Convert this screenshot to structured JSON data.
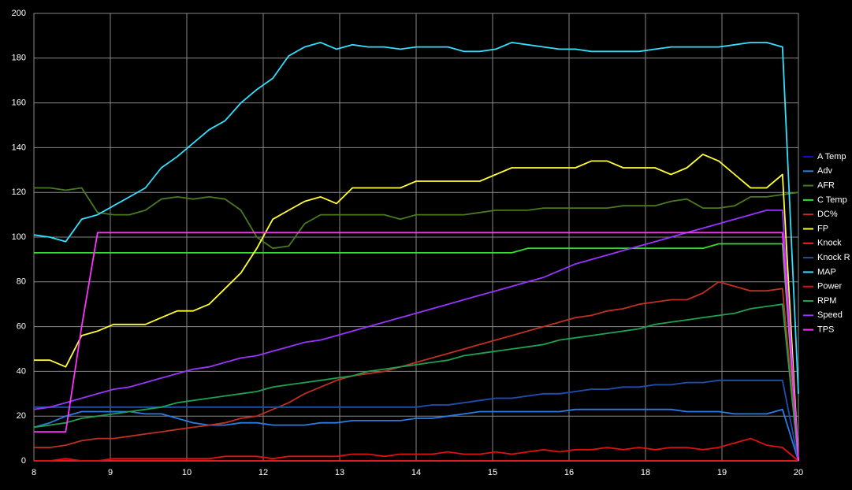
{
  "chart_data": {
    "type": "line",
    "x": [
      8,
      8.25,
      8.5,
      8.75,
      9,
      9.25,
      9.5,
      9.75,
      10,
      10.25,
      10.5,
      10.75,
      11,
      11.25,
      11.5,
      11.75,
      12,
      12.25,
      12.5,
      12.75,
      13,
      13.25,
      13.5,
      13.75,
      14,
      14.25,
      14.5,
      14.75,
      15,
      15.25,
      15.5,
      15.75,
      16,
      16.25,
      16.5,
      16.75,
      17,
      17.25,
      17.5,
      17.75,
      18,
      18.25,
      18.5,
      18.75,
      19,
      19.25,
      19.5,
      19.75,
      20
    ],
    "xlim": [
      8,
      20
    ],
    "xticks": [
      8,
      {
        "value": 9.2,
        "label": "9"
      },
      {
        "value": 10.4,
        "label": "10"
      },
      {
        "value": 11.6,
        "label": "12"
      },
      {
        "value": 12.8,
        "label": "13"
      },
      14,
      {
        "value": 15.2,
        "label": "15"
      },
      {
        "value": 16.4,
        "label": "16"
      },
      {
        "value": 17.6,
        "label": "18"
      },
      {
        "value": 18.8,
        "label": "19"
      },
      20
    ],
    "ylim": [
      0,
      200
    ],
    "yticks": [
      0,
      20,
      40,
      60,
      80,
      100,
      120,
      140,
      160,
      180,
      200
    ],
    "grid": true,
    "legend": "right",
    "series": [
      {
        "name": "A Temp",
        "color": "#1010c0",
        "values": [
          24,
          24,
          24,
          24,
          24,
          24,
          24,
          24,
          24,
          24,
          24,
          24,
          24,
          24,
          24,
          24,
          24,
          24,
          24,
          24,
          24,
          24,
          24,
          24,
          24,
          25,
          25,
          26,
          27,
          28,
          28,
          29,
          30,
          30,
          31,
          32,
          32,
          33,
          33,
          34,
          34,
          35,
          35,
          36,
          36,
          36,
          36,
          36,
          0
        ]
      },
      {
        "name": "Adv",
        "color": "#2a7be4",
        "values": [
          15,
          17,
          20,
          22,
          22,
          22,
          22,
          21,
          21,
          19,
          17,
          16,
          16,
          17,
          17,
          16,
          16,
          16,
          17,
          17,
          18,
          18,
          18,
          18,
          19,
          19,
          20,
          21,
          22,
          22,
          22,
          22,
          22,
          22,
          23,
          23,
          23,
          23,
          23,
          23,
          23,
          22,
          22,
          22,
          21,
          21,
          21,
          23,
          0
        ]
      },
      {
        "name": "AFR",
        "color": "#4a7a20",
        "values": [
          122,
          122,
          121,
          122,
          111,
          110,
          110,
          112,
          117,
          118,
          117,
          118,
          117,
          112,
          100,
          95,
          96,
          106,
          110,
          110,
          110,
          110,
          110,
          108,
          110,
          110,
          110,
          110,
          111,
          112,
          112,
          112,
          113,
          113,
          113,
          113,
          113,
          114,
          114,
          114,
          116,
          117,
          113,
          113,
          114,
          118,
          118,
          119,
          120
        ]
      },
      {
        "name": "C Temp",
        "color": "#33dd33",
        "values": [
          93,
          93,
          93,
          93,
          93,
          93,
          93,
          93,
          93,
          93,
          93,
          93,
          93,
          93,
          93,
          93,
          93,
          93,
          93,
          93,
          93,
          93,
          93,
          93,
          93,
          93,
          93,
          93,
          93,
          93,
          93,
          95,
          95,
          95,
          95,
          95,
          95,
          95,
          95,
          95,
          95,
          95,
          95,
          97,
          97,
          97,
          97,
          97,
          0
        ]
      },
      {
        "name": "DC%",
        "color": "#c03020",
        "values": [
          6,
          6,
          7,
          9,
          10,
          10,
          11,
          12,
          13,
          14,
          15,
          16,
          17,
          19,
          20,
          23,
          26,
          30,
          33,
          36,
          38,
          39,
          40,
          42,
          44,
          46,
          48,
          50,
          52,
          54,
          56,
          58,
          60,
          62,
          64,
          65,
          67,
          68,
          70,
          71,
          72,
          72,
          75,
          80,
          78,
          76,
          76,
          77,
          0
        ]
      },
      {
        "name": "FP",
        "color": "#ffff33",
        "values": [
          45,
          45,
          42,
          56,
          58,
          61,
          61,
          61,
          64,
          67,
          67,
          70,
          77,
          84,
          95,
          108,
          112,
          116,
          118,
          115,
          122,
          122,
          122,
          122,
          125,
          125,
          125,
          125,
          125,
          128,
          131,
          131,
          131,
          131,
          131,
          134,
          134,
          131,
          131,
          131,
          128,
          131,
          137,
          134,
          128,
          122,
          122,
          128,
          0
        ]
      },
      {
        "name": "Knock",
        "color": "#ff2020",
        "values": [
          0,
          0,
          0,
          0,
          0,
          0,
          0,
          0,
          0,
          0,
          0,
          0,
          0,
          0,
          0,
          0,
          0,
          0,
          0,
          0,
          0,
          0,
          0,
          0,
          0,
          0,
          0,
          0,
          0,
          0,
          0,
          0,
          0,
          0,
          0,
          0,
          0,
          0,
          0,
          0,
          0,
          0,
          0,
          0,
          0,
          0,
          0,
          0,
          0
        ]
      },
      {
        "name": "Knock R",
        "color": "#1f4fa0",
        "values": [
          24,
          24,
          24,
          24,
          24,
          24,
          24,
          24,
          24,
          24,
          24,
          24,
          24,
          24,
          24,
          24,
          24,
          24,
          24,
          24,
          24,
          24,
          24,
          24,
          24,
          25,
          25,
          26,
          27,
          28,
          28,
          29,
          30,
          30,
          31,
          32,
          32,
          33,
          33,
          34,
          34,
          35,
          35,
          36,
          36,
          36,
          36,
          36,
          0
        ]
      },
      {
        "name": "MAP",
        "color": "#33e0ff",
        "values": [
          101,
          100,
          98,
          108,
          110,
          114,
          118,
          122,
          131,
          136,
          142,
          148,
          152,
          160,
          166,
          171,
          181,
          185,
          187,
          184,
          186,
          185,
          185,
          184,
          185,
          185,
          185,
          183,
          183,
          184,
          187,
          186,
          185,
          184,
          184,
          183,
          183,
          183,
          183,
          184,
          185,
          185,
          185,
          185,
          186,
          187,
          187,
          185,
          30
        ]
      },
      {
        "name": "Power",
        "color": "#e01010",
        "values": [
          0,
          0,
          1,
          0,
          0,
          1,
          1,
          1,
          1,
          1,
          1,
          1,
          2,
          2,
          2,
          1,
          2,
          2,
          2,
          2,
          3,
          3,
          2,
          3,
          3,
          3,
          4,
          3,
          3,
          4,
          3,
          4,
          5,
          4,
          5,
          5,
          6,
          5,
          6,
          5,
          6,
          6,
          5,
          6,
          8,
          10,
          7,
          6,
          0
        ]
      },
      {
        "name": "RPM",
        "color": "#20a050",
        "values": [
          15,
          16,
          17,
          19,
          20,
          21,
          22,
          23,
          24,
          26,
          27,
          28,
          29,
          30,
          31,
          33,
          34,
          35,
          36,
          37,
          38,
          40,
          41,
          42,
          43,
          44,
          45,
          47,
          48,
          49,
          50,
          51,
          52,
          54,
          55,
          56,
          57,
          58,
          59,
          61,
          62,
          63,
          64,
          65,
          66,
          68,
          69,
          70,
          0
        ]
      },
      {
        "name": "Speed",
        "color": "#9933ff",
        "values": [
          23,
          24,
          26,
          28,
          30,
          32,
          33,
          35,
          37,
          39,
          41,
          42,
          44,
          46,
          47,
          49,
          51,
          53,
          54,
          56,
          58,
          60,
          62,
          64,
          66,
          68,
          70,
          72,
          74,
          76,
          78,
          80,
          82,
          85,
          88,
          90,
          92,
          94,
          96,
          98,
          100,
          102,
          104,
          106,
          108,
          110,
          112,
          112,
          0
        ]
      },
      {
        "name": "TPS",
        "color": "#ff33ff",
        "values": [
          13,
          13,
          13,
          60,
          102,
          102,
          102,
          102,
          102,
          102,
          102,
          102,
          102,
          102,
          102,
          102,
          102,
          102,
          102,
          102,
          102,
          102,
          102,
          102,
          102,
          102,
          102,
          102,
          102,
          102,
          102,
          102,
          102,
          102,
          102,
          102,
          102,
          102,
          102,
          102,
          102,
          102,
          102,
          102,
          102,
          102,
          102,
          102,
          0
        ]
      }
    ]
  }
}
